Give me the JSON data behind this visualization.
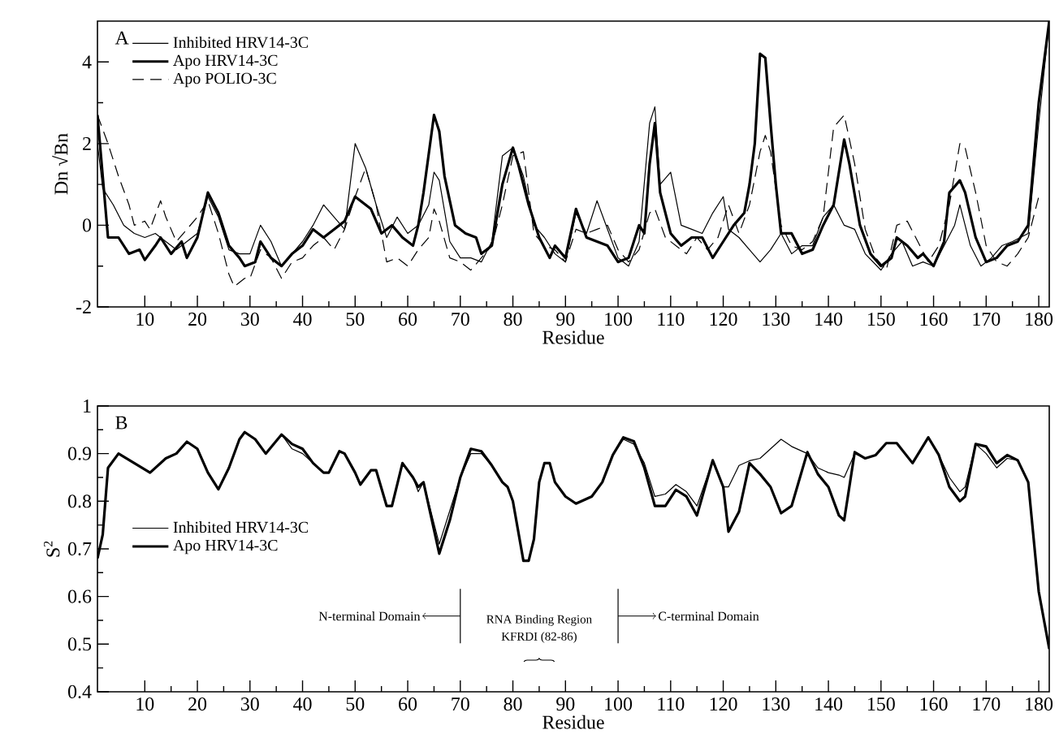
{
  "chart_data": [
    {
      "type": "line",
      "xlabel": "Residue",
      "ylabel": "Dn    √Bn",
      "annotations": [
        "A"
      ],
      "xlim": [
        1,
        182
      ],
      "ylim": [
        -2,
        5
      ],
      "xticks": [
        10,
        20,
        30,
        40,
        50,
        60,
        70,
        80,
        90,
        100,
        110,
        120,
        130,
        140,
        150,
        160,
        170,
        180
      ],
      "yticks": [
        -2,
        0,
        2,
        4
      ],
      "legend": "top left",
      "marker": "none",
      "series": [
        {
          "name": "Inhibited HRV14-3C",
          "color": "#000000",
          "line_style": "solid",
          "x": [
            1,
            2,
            4,
            6,
            8,
            10,
            12,
            14,
            16,
            18,
            20,
            22,
            24,
            26,
            28,
            30,
            32,
            34,
            36,
            38,
            40,
            42,
            44,
            46,
            48,
            50,
            52,
            54,
            56,
            58,
            60,
            62,
            64,
            65,
            66,
            68,
            70,
            72,
            74,
            76,
            78,
            80,
            82,
            84,
            86,
            88,
            90,
            92,
            94,
            96,
            98,
            100,
            102,
            104,
            106,
            107,
            108,
            110,
            112,
            114,
            116,
            118,
            120,
            121,
            123,
            125,
            127,
            129,
            131,
            133,
            135,
            137,
            139,
            141,
            143,
            145,
            147,
            150,
            152,
            154,
            156,
            158,
            160,
            162,
            164,
            165,
            167,
            169,
            171,
            173,
            175,
            178,
            180,
            182
          ],
          "values": [
            2.0,
            0.9,
            0.5,
            0,
            -0.2,
            -0.3,
            -0.2,
            -0.4,
            -0.6,
            -0.4,
            -0.2,
            0.7,
            0.2,
            -0.6,
            -0.7,
            -0.7,
            0.0,
            -0.4,
            -1.0,
            -0.7,
            -0.4,
            0,
            0.5,
            0.2,
            -0.1,
            2.0,
            1.4,
            0.5,
            -0.3,
            0.2,
            -0.2,
            0,
            0.5,
            1.3,
            1.1,
            -0.4,
            -0.8,
            -0.8,
            -0.9,
            -0.4,
            1.7,
            1.9,
            1.2,
            0,
            -0.3,
            -0.7,
            -0.9,
            0.3,
            -0.2,
            0.6,
            -0.1,
            -0.8,
            -1.0,
            -0.4,
            2.5,
            2.9,
            1.0,
            1.3,
            0,
            -0.1,
            -0.2,
            0.3,
            0.7,
            -0.1,
            -0.3,
            -0.6,
            -0.9,
            -0.6,
            -0.2,
            -0.7,
            -0.5,
            -0.5,
            0.2,
            0.5,
            0,
            -0.1,
            -0.7,
            -1.1,
            -0.7,
            -0.4,
            -1.0,
            -0.9,
            -1.0,
            -0.5,
            0,
            0.5,
            -0.5,
            -1.0,
            -0.8,
            -0.5,
            -0.4,
            -0.2,
            2.5,
            5.0
          ]
        },
        {
          "name": "Apo HRV14-3C",
          "color": "#000000",
          "line_style": "solid",
          "x": [
            1,
            3,
            5,
            7,
            9,
            10,
            12,
            13,
            15,
            17,
            18,
            20,
            22,
            24,
            26,
            28,
            29,
            31,
            32,
            34,
            36,
            38,
            40,
            42,
            44,
            46,
            48,
            50,
            52,
            53,
            55,
            57,
            59,
            61,
            62,
            63,
            65,
            66,
            67,
            69,
            71,
            73,
            74,
            76,
            78,
            80,
            81,
            83,
            85,
            87,
            88,
            90,
            92,
            94,
            96,
            98,
            100,
            102,
            104,
            105,
            106,
            107,
            108,
            110,
            112,
            114,
            116,
            118,
            120,
            122,
            124,
            125,
            126,
            127,
            128,
            129,
            130,
            131,
            133,
            135,
            137,
            139,
            141,
            143,
            144,
            146,
            148,
            150,
            152,
            153,
            155,
            157,
            158,
            160,
            162,
            163,
            165,
            166,
            168,
            170,
            172,
            174,
            176,
            178,
            180,
            182
          ],
          "values": [
            2.7,
            -0.3,
            -0.3,
            -0.7,
            -0.6,
            -0.85,
            -0.5,
            -0.3,
            -0.7,
            -0.4,
            -0.8,
            -0.3,
            0.8,
            0.3,
            -0.5,
            -0.8,
            -1.0,
            -0.9,
            -0.4,
            -0.8,
            -1.0,
            -0.7,
            -0.5,
            -0.1,
            -0.3,
            -0.1,
            0.1,
            0.7,
            0.5,
            0.4,
            -0.2,
            0,
            -0.3,
            -0.5,
            0,
            0.8,
            2.7,
            2.3,
            1.2,
            0,
            -0.2,
            -0.3,
            -0.7,
            -0.5,
            1.0,
            1.9,
            1.5,
            0.5,
            -0.3,
            -0.8,
            -0.5,
            -0.8,
            0.4,
            -0.3,
            -0.4,
            -0.5,
            -0.9,
            -0.8,
            0,
            -0.2,
            1.5,
            2.5,
            0.8,
            -0.2,
            -0.5,
            -0.3,
            -0.3,
            -0.8,
            -0.4,
            0,
            0.3,
            1.0,
            2.0,
            4.2,
            4.1,
            2.5,
            1.0,
            -0.2,
            -0.2,
            -0.7,
            -0.6,
            0,
            0.5,
            2.1,
            1.5,
            0,
            -0.7,
            -1.0,
            -0.8,
            -0.3,
            -0.5,
            -0.8,
            -0.7,
            -1.0,
            -0.4,
            0.8,
            1.1,
            0.8,
            -0.3,
            -0.9,
            -0.8,
            -0.5,
            -0.4,
            0,
            3.0,
            5.0
          ]
        },
        {
          "name": "Apo POLIO-3C",
          "color": "#000000",
          "line_style": "dashed",
          "x": [
            1,
            3,
            5,
            7,
            8,
            10,
            11,
            13,
            14,
            16,
            18,
            20,
            22,
            24,
            26,
            27,
            29,
            30,
            32,
            34,
            36,
            38,
            40,
            42,
            44,
            46,
            48,
            50,
            52,
            54,
            56,
            58,
            60,
            62,
            64,
            65,
            66,
            68,
            70,
            72,
            74,
            76,
            78,
            80,
            82,
            84,
            86,
            88,
            90,
            92,
            94,
            96,
            98,
            100,
            102,
            104,
            106,
            107,
            109,
            111,
            113,
            115,
            117,
            119,
            121,
            123,
            125,
            127,
            128,
            129,
            131,
            133,
            135,
            137,
            139,
            141,
            143,
            145,
            147,
            149,
            151,
            153,
            155,
            157,
            159,
            161,
            163,
            165,
            166,
            168,
            170,
            172,
            174,
            176,
            178,
            180
          ],
          "values": [
            2.7,
            2.0,
            1.2,
            0.5,
            0,
            0.1,
            -0.1,
            0.6,
            0.2,
            -0.4,
            -0.1,
            0.2,
            0.6,
            -0.2,
            -1.2,
            -1.5,
            -1.3,
            -1.3,
            -0.6,
            -0.8,
            -1.3,
            -0.9,
            -0.8,
            -0.5,
            -0.3,
            -0.6,
            -0.1,
            0.7,
            1.4,
            0.5,
            -0.9,
            -0.8,
            -1.0,
            -0.6,
            -0.3,
            0.4,
            0.1,
            -0.8,
            -0.9,
            -1.1,
            -0.8,
            -0.5,
            0.5,
            1.7,
            1.8,
            -0.2,
            -0.5,
            -0.6,
            -0.9,
            -0.1,
            -0.2,
            -0.1,
            0.0,
            -0.6,
            -0.9,
            -0.6,
            0.3,
            0.4,
            -0.3,
            -0.5,
            -0.7,
            -0.3,
            -0.6,
            -0.3,
            0.5,
            -0.2,
            0.5,
            1.8,
            2.2,
            1.8,
            0.0,
            -0.5,
            -0.6,
            -0.4,
            0.2,
            2.4,
            2.7,
            1.5,
            -0.1,
            -0.8,
            -1.1,
            0,
            0.1,
            -0.4,
            -0.9,
            -0.5,
            0.5,
            2.0,
            1.9,
            0.8,
            -0.5,
            -0.9,
            -1.0,
            -0.7,
            -0.3,
            0.7
          ]
        }
      ]
    },
    {
      "type": "line",
      "xlabel": "Residue",
      "ylabel": "S$^{2}$",
      "annotations": [
        "B",
        "RNA Binding Region",
        "KFRDI (82-86)"
      ],
      "xlim": [
        1,
        182
      ],
      "ylim": [
        0.4,
        1
      ],
      "xticks": [
        10,
        20,
        30,
        40,
        50,
        60,
        70,
        80,
        90,
        100,
        110,
        120,
        130,
        140,
        150,
        160,
        170,
        180
      ],
      "yticks": [
        0.4,
        0.5,
        0.6,
        0.7,
        0.8,
        0.9,
        1
      ],
      "legend": "left",
      "marker": "none",
      "ref_lines": [
        {
          "axis": "x",
          "value": 70,
          "label": "N-terminal Domain"
        },
        {
          "axis": "x",
          "value": 100,
          "label": "C-terminal Domain"
        }
      ],
      "series": [
        {
          "name": "Inhibited HRV14-3C",
          "color": "#000000",
          "line_style": "solid",
          "x": [
            1,
            2,
            3,
            5,
            8,
            11,
            14,
            16,
            18,
            20,
            22,
            24,
            26,
            28,
            29,
            31,
            33,
            36,
            38,
            40,
            42,
            44,
            45,
            47,
            48,
            50,
            51,
            53,
            54,
            56,
            57,
            59,
            61,
            62,
            63,
            66,
            68,
            70,
            72,
            74,
            76,
            78,
            79,
            80,
            82,
            83,
            84,
            85,
            86,
            87,
            88,
            90,
            92,
            95,
            97,
            99,
            101,
            103,
            105,
            107,
            109,
            111,
            113,
            115,
            118,
            120,
            121,
            123,
            125,
            127,
            129,
            131,
            133,
            136,
            138,
            140,
            142,
            143,
            145,
            147,
            149,
            151,
            153,
            156,
            159,
            161,
            163,
            165,
            166,
            168,
            170,
            172,
            174,
            176,
            178,
            180,
            182
          ],
          "values": [
            0.68,
            0.73,
            0.87,
            0.9,
            0.88,
            0.86,
            0.89,
            0.9,
            0.925,
            0.91,
            0.86,
            0.825,
            0.87,
            0.93,
            0.945,
            0.93,
            0.9,
            0.94,
            0.91,
            0.9,
            0.88,
            0.86,
            0.86,
            0.905,
            0.9,
            0.86,
            0.835,
            0.865,
            0.865,
            0.79,
            0.79,
            0.88,
            0.85,
            0.82,
            0.84,
            0.71,
            0.78,
            0.85,
            0.9,
            0.9,
            0.875,
            0.84,
            0.83,
            0.8,
            0.675,
            0.675,
            0.72,
            0.84,
            0.88,
            0.88,
            0.84,
            0.81,
            0.795,
            0.81,
            0.84,
            0.897,
            0.93,
            0.92,
            0.88,
            0.81,
            0.815,
            0.835,
            0.82,
            0.79,
            0.885,
            0.83,
            0.83,
            0.875,
            0.885,
            0.89,
            0.91,
            0.93,
            0.915,
            0.9,
            0.87,
            0.86,
            0.855,
            0.85,
            0.9,
            0.89,
            0.897,
            0.922,
            0.922,
            0.88,
            0.934,
            0.897,
            0.85,
            0.82,
            0.83,
            0.92,
            0.9,
            0.87,
            0.89,
            0.886,
            0.84,
            0.61,
            0.49
          ]
        },
        {
          "name": "Apo HRV14-3C",
          "color": "#000000",
          "line_style": "solid",
          "x": [
            1,
            2,
            3,
            5,
            8,
            11,
            14,
            16,
            18,
            20,
            22,
            24,
            26,
            28,
            29,
            31,
            33,
            36,
            38,
            40,
            42,
            44,
            45,
            47,
            48,
            50,
            51,
            53,
            54,
            56,
            57,
            59,
            61,
            62,
            63,
            66,
            68,
            70,
            72,
            74,
            76,
            78,
            79,
            80,
            82,
            83,
            84,
            85,
            86,
            87,
            88,
            90,
            92,
            95,
            97,
            99,
            101,
            103,
            105,
            107,
            109,
            111,
            113,
            115,
            118,
            120,
            121,
            123,
            125,
            127,
            129,
            131,
            133,
            136,
            138,
            140,
            142,
            143,
            145,
            147,
            149,
            151,
            153,
            156,
            159,
            161,
            163,
            165,
            166,
            168,
            170,
            172,
            174,
            176,
            178,
            180,
            182
          ],
          "values": [
            0.68,
            0.73,
            0.87,
            0.9,
            0.88,
            0.86,
            0.89,
            0.9,
            0.925,
            0.91,
            0.86,
            0.825,
            0.87,
            0.93,
            0.945,
            0.93,
            0.9,
            0.94,
            0.92,
            0.91,
            0.88,
            0.86,
            0.86,
            0.905,
            0.9,
            0.86,
            0.835,
            0.865,
            0.865,
            0.79,
            0.79,
            0.88,
            0.85,
            0.83,
            0.84,
            0.69,
            0.76,
            0.85,
            0.91,
            0.905,
            0.875,
            0.84,
            0.83,
            0.8,
            0.675,
            0.675,
            0.72,
            0.84,
            0.88,
            0.88,
            0.84,
            0.81,
            0.795,
            0.81,
            0.84,
            0.897,
            0.934,
            0.926,
            0.87,
            0.79,
            0.79,
            0.824,
            0.81,
            0.77,
            0.886,
            0.83,
            0.736,
            0.778,
            0.88,
            0.857,
            0.83,
            0.775,
            0.79,
            0.903,
            0.857,
            0.83,
            0.77,
            0.76,
            0.903,
            0.89,
            0.897,
            0.922,
            0.922,
            0.88,
            0.934,
            0.897,
            0.83,
            0.8,
            0.81,
            0.92,
            0.915,
            0.88,
            0.897,
            0.886,
            0.84,
            0.61,
            0.49
          ]
        }
      ]
    }
  ]
}
